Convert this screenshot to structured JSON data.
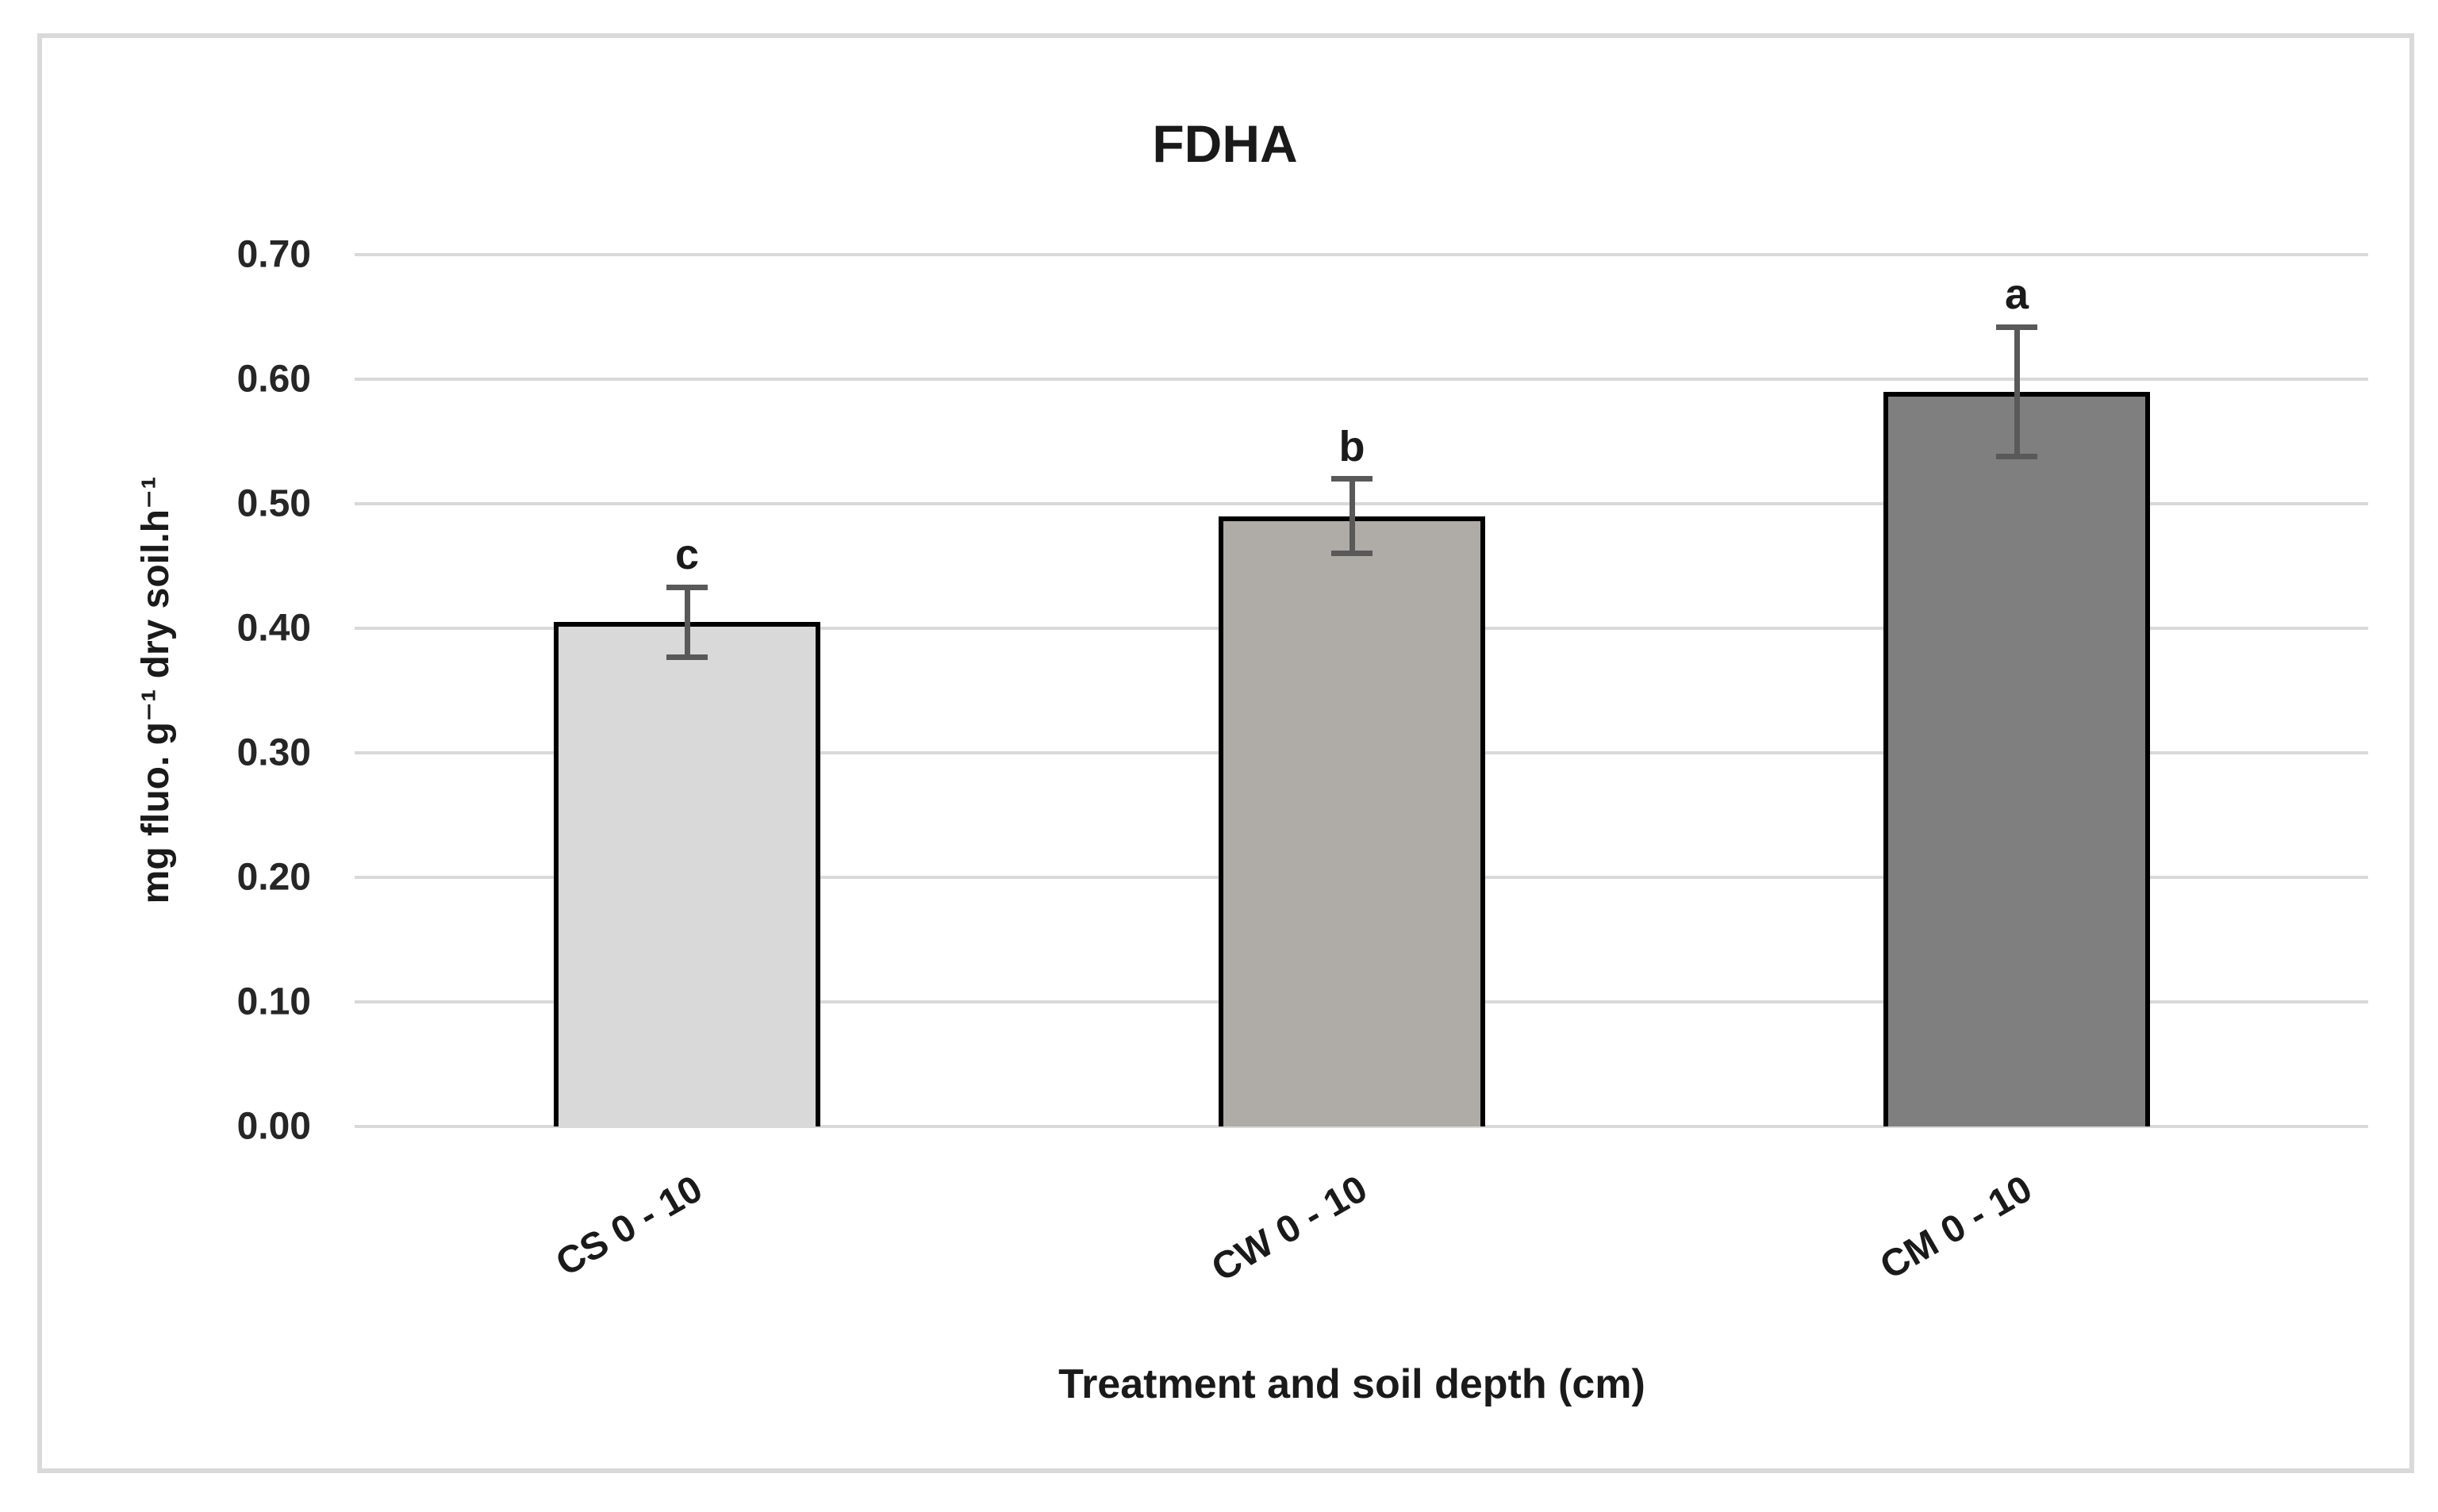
{
  "chart_data": {
    "type": "bar",
    "title": "FDHA",
    "xlabel": "Treatment and soil depth (cm)",
    "ylabel": "mg fluo. g⁻¹ dry soil.h⁻¹",
    "categories": [
      "CS 0 - 10",
      "CW 0 - 10",
      "CM 0 - 10"
    ],
    "values": [
      0.405,
      0.49,
      0.59
    ],
    "error_bars": [
      0.028,
      0.03,
      0.052
    ],
    "significance_letters": [
      "c",
      "b",
      "a"
    ],
    "bar_colors": [
      "#D9D9D9",
      "#AFABA6",
      "#7F7F7F"
    ],
    "bar_border_color": "#000000",
    "error_bar_color": "#595959",
    "gridline_color": "#D9D9D9",
    "ylim": [
      0.0,
      0.7
    ],
    "ytick_step": 0.1,
    "ytick_labels": [
      "0.00",
      "0.10",
      "0.20",
      "0.30",
      "0.40",
      "0.50",
      "0.60",
      "0.70"
    ],
    "grid": true,
    "legend_position": "none"
  }
}
